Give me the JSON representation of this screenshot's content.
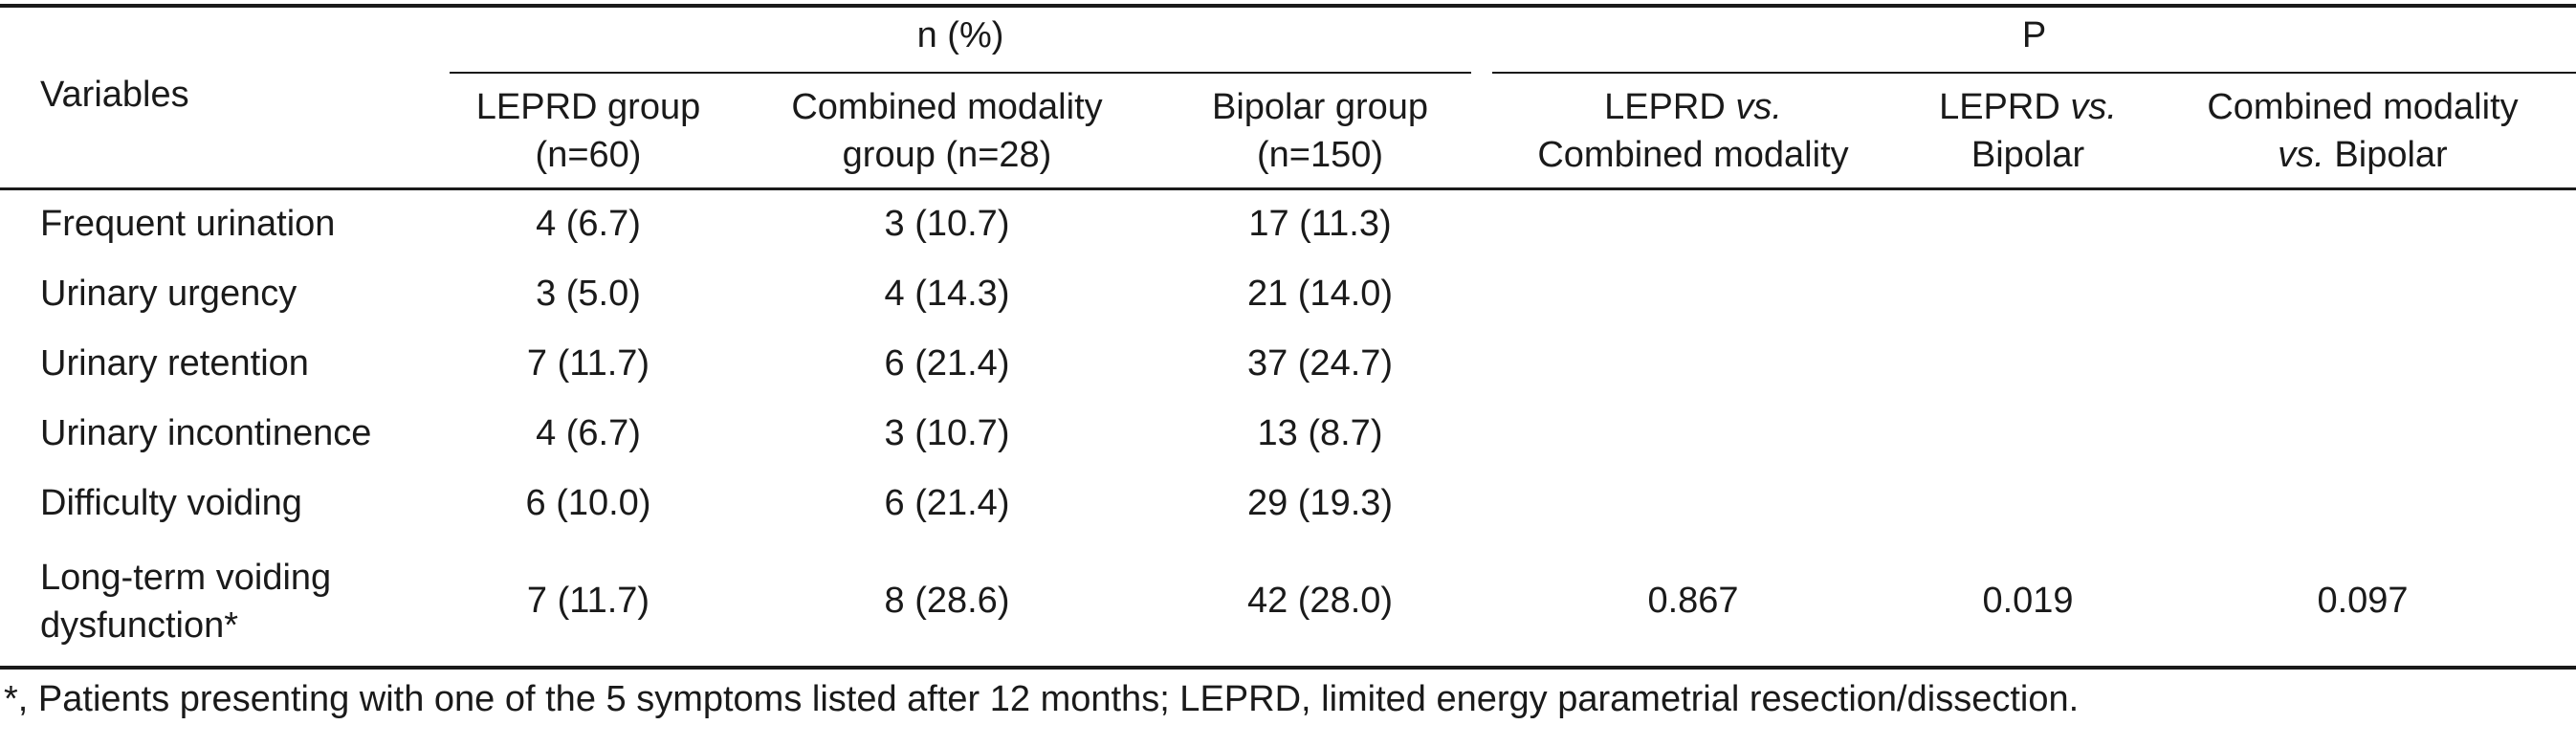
{
  "table": {
    "spanning_headers": {
      "n_percent": "n (%)",
      "p": "P"
    },
    "variables_header": "Variables",
    "group_headers": [
      {
        "line1": "LEPRD group",
        "line2": "(n=60)"
      },
      {
        "line1": "Combined modality",
        "line2": "group (n=28)"
      },
      {
        "line1": "Bipolar group",
        "line2": "(n=150)"
      }
    ],
    "p_headers": [
      {
        "a": "LEPRD ",
        "vs": "vs.",
        "b": "",
        "line2": "Combined modality"
      },
      {
        "a": "LEPRD ",
        "vs": "vs.",
        "b": "",
        "line2": "Bipolar"
      },
      {
        "a": "Combined modality",
        "vs": "",
        "b": "",
        "line2_vs": "vs.",
        "line2": " Bipolar"
      }
    ],
    "rows": [
      {
        "variable": "Frequent urination",
        "leprd": "4 (6.7)",
        "combined": "3 (10.7)",
        "bipolar": "17 (11.3)"
      },
      {
        "variable": "Urinary urgency",
        "leprd": "3 (5.0)",
        "combined": "4 (14.3)",
        "bipolar": "21 (14.0)"
      },
      {
        "variable": "Urinary retention",
        "leprd": "7 (11.7)",
        "combined": "6 (21.4)",
        "bipolar": "37 (24.7)"
      },
      {
        "variable": "Urinary incontinence",
        "leprd": "4 (6.7)",
        "combined": "3 (10.7)",
        "bipolar": "13 (8.7)"
      },
      {
        "variable": "Difficulty voiding",
        "leprd": "6 (10.0)",
        "combined": "6 (21.4)",
        "bipolar": "29 (19.3)"
      }
    ],
    "last_row": {
      "variable_line1": "Long-term voiding",
      "variable_line2": "dysfunction*",
      "leprd": "7 (11.7)",
      "combined": "8 (28.6)",
      "bipolar": "42 (28.0)",
      "p_leprd_vs_combined": "0.867",
      "p_leprd_vs_bipolar": "0.019",
      "p_combined_vs_bipolar": "0.097"
    },
    "footnote": "*, Patients presenting with one of the 5 symptoms listed after 12 months; LEPRD, limited energy parametrial resection/dissection."
  }
}
